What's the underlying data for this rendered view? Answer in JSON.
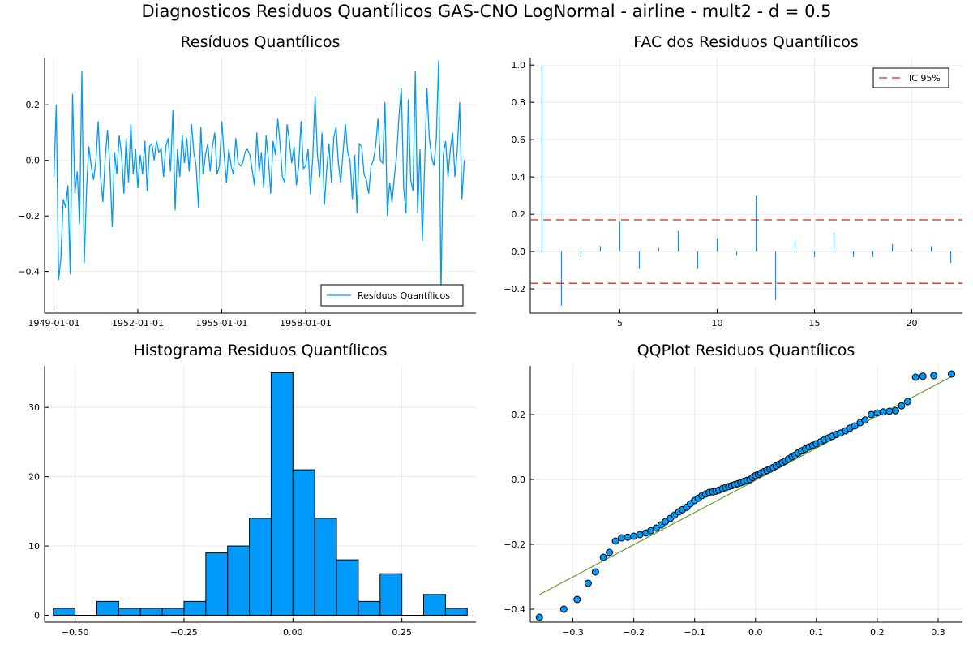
{
  "figure": {
    "suptitle": "Diagnosticos Residuos  Quantílicos GAS-CNO LogNormal - airline - mult2 - d = 0.5"
  },
  "colors": {
    "series": "#009AFA",
    "ci_line": "#E0261B",
    "qq_line": "#5F9E2A",
    "bar_edge": "#000000"
  },
  "chart_data": [
    {
      "id": "residuals",
      "type": "line",
      "title": "Resíduos  Quantílicos",
      "xlabel": "",
      "ylabel": "",
      "x_start": "1949-01-01",
      "x_step": "1 month",
      "x_ticks": [
        "1949-01-01",
        "1952-01-01",
        "1955-01-01",
        "1958-01-01"
      ],
      "x_tick_index": [
        0,
        36,
        72,
        108
      ],
      "ylim": [
        -0.55,
        0.37
      ],
      "y_ticks": [
        -0.4,
        -0.2,
        0.0,
        0.2
      ],
      "y_tick_labels": [
        "−0.4",
        "−0.2",
        "0.0",
        "0.2"
      ],
      "grid": true,
      "legend": {
        "position": "bottom-right",
        "entries": [
          "Resíduos Quantílicos"
        ]
      },
      "series": [
        {
          "name": "Resíduos Quantílicos",
          "values": [
            -0.06,
            0.2,
            -0.43,
            -0.35,
            -0.14,
            -0.17,
            -0.09,
            -0.41,
            0.24,
            -0.12,
            -0.04,
            -0.23,
            0.32,
            -0.37,
            -0.1,
            0.05,
            -0.02,
            -0.07,
            0.0,
            0.14,
            -0.06,
            -0.15,
            0.01,
            0.11,
            -0.02,
            -0.24,
            0.03,
            -0.05,
            0.09,
            0.02,
            -0.12,
            0.08,
            -0.08,
            0.13,
            -0.05,
            0.04,
            -0.1,
            0.02,
            -0.05,
            0.07,
            -0.11,
            0.05,
            0.06,
            0.0,
            0.07,
            0.03,
            0.04,
            -0.06,
            0.05,
            0.08,
            -0.04,
            0.18,
            -0.18,
            0.04,
            -0.06,
            0.09,
            -0.01,
            0.08,
            -0.04,
            0.13,
            0.03,
            -0.02,
            -0.17,
            0.12,
            -0.05,
            0.02,
            0.06,
            -0.04,
            0.05,
            0.1,
            -0.05,
            -0.02,
            0.14,
            0.02,
            -0.08,
            0.04,
            -0.02,
            -0.05,
            0.08,
            -0.01,
            -0.02,
            -0.01,
            0.03,
            0.04,
            0.02,
            -0.03,
            -0.09,
            0.1,
            -0.04,
            0.03,
            -0.1,
            0.09,
            0.0,
            -0.12,
            0.07,
            0.02,
            0.15,
            0.06,
            -0.06,
            -0.08,
            0.13,
            0.07,
            -0.01,
            0.05,
            -0.09,
            -0.02,
            0.14,
            -0.03,
            -0.02,
            0.04,
            -0.12,
            0.01,
            0.23,
            0.02,
            -0.06,
            0.1,
            -0.16,
            -0.03,
            0.06,
            -0.08,
            0.08,
            0.12,
            -0.01,
            -0.08,
            0.03,
            0.13,
            0.03,
            0.0,
            -0.14,
            0.02,
            -0.19,
            0.06,
            0.05,
            -0.05,
            -0.07,
            -0.12,
            -0.02,
            0.0,
            0.05,
            0.15,
            0.0,
            -0.01,
            0.21,
            -0.2,
            -0.08,
            -0.15,
            -0.06,
            0.02,
            0.16,
            0.26,
            -0.1,
            -0.19,
            0.22,
            -0.07,
            -0.11,
            0.32,
            -0.19,
            0.04,
            -0.29,
            -0.02,
            0.26,
            0.08,
            0.01,
            -0.02,
            0.08,
            0.36,
            -0.47,
            0.02,
            0.07,
            -0.06,
            0.04,
            0.1,
            -0.06,
            0.04,
            0.21,
            -0.14,
            0.0
          ]
        }
      ]
    },
    {
      "id": "acf",
      "type": "bar",
      "title": "FAC dos Residuos Quantílicos",
      "xlabel": "",
      "ylabel": "",
      "x": [
        1,
        2,
        3,
        4,
        5,
        6,
        7,
        8,
        9,
        10,
        11,
        12,
        13,
        14,
        15,
        16,
        17,
        18,
        19,
        20,
        21,
        22
      ],
      "values": [
        1.0,
        -0.29,
        -0.03,
        0.03,
        0.16,
        -0.09,
        0.02,
        0.11,
        -0.09,
        0.07,
        -0.02,
        0.3,
        -0.26,
        0.06,
        -0.03,
        0.1,
        -0.03,
        -0.03,
        0.04,
        0.01,
        0.03,
        -0.06
      ],
      "xlim": [
        0.4,
        22.6
      ],
      "ylim": [
        -0.33,
        1.04
      ],
      "x_ticks": [
        5,
        10,
        15,
        20
      ],
      "y_ticks": [
        -0.2,
        0.0,
        0.2,
        0.4,
        0.6,
        0.8,
        1.0
      ],
      "y_tick_labels": [
        "−0.2",
        "0.0",
        "0.2",
        "0.4",
        "0.6",
        "0.8",
        "1.0"
      ],
      "ci": [
        -0.17,
        0.17
      ],
      "grid": true,
      "legend": {
        "position": "top-right",
        "entries": [
          "IC 95%"
        ]
      }
    },
    {
      "id": "histogram",
      "type": "bar",
      "title": "Histograma Residuos Quantílicos",
      "xlabel": "",
      "ylabel": "",
      "bin_edges": [
        -0.55,
        -0.5,
        -0.45,
        -0.4,
        -0.35,
        -0.3,
        -0.25,
        -0.2,
        -0.15,
        -0.1,
        -0.05,
        0.0,
        0.05,
        0.1,
        0.15,
        0.2,
        0.25,
        0.3,
        0.35,
        0.4
      ],
      "values": [
        1,
        0,
        2,
        1,
        1,
        1,
        2,
        9,
        10,
        14,
        35,
        21,
        14,
        8,
        2,
        6,
        0,
        3,
        1
      ],
      "xlim": [
        -0.57,
        0.42
      ],
      "ylim": [
        -1,
        36
      ],
      "x_ticks": [
        -0.5,
        -0.25,
        0.0,
        0.25
      ],
      "x_tick_labels": [
        "−0.50",
        "−0.25",
        "0.00",
        "0.25"
      ],
      "y_ticks": [
        0,
        10,
        20,
        30
      ],
      "grid": true
    },
    {
      "id": "qqplot",
      "type": "scatter",
      "title": "QQPlot Residuos Quantílicos",
      "xlabel": "",
      "ylabel": "",
      "xlim": [
        -0.37,
        0.34
      ],
      "ylim": [
        -0.44,
        0.35
      ],
      "x_ticks": [
        -0.3,
        -0.2,
        -0.1,
        0.0,
        0.1,
        0.2,
        0.3
      ],
      "x_tick_labels": [
        "−0.3",
        "−0.2",
        "−0.1",
        "0.0",
        "0.1",
        "0.2",
        "0.3"
      ],
      "y_ticks": [
        -0.4,
        -0.2,
        0.0,
        0.2
      ],
      "y_tick_labels": [
        "−0.4",
        "−0.2",
        "0.0",
        "0.2"
      ],
      "grid": true,
      "reference_line": {
        "x": [
          -0.355,
          0.325
        ],
        "y": [
          -0.355,
          0.32
        ]
      },
      "points": {
        "x": [
          -0.355,
          -0.315,
          -0.293,
          -0.275,
          -0.263,
          -0.25,
          -0.24,
          -0.23,
          -0.22,
          -0.21,
          -0.2,
          -0.19,
          -0.18,
          -0.172,
          -0.163,
          -0.155,
          -0.148,
          -0.14,
          -0.133,
          -0.126,
          -0.12,
          -0.113,
          -0.107,
          -0.1,
          -0.094,
          -0.088,
          -0.082,
          -0.076,
          -0.07,
          -0.065,
          -0.06,
          -0.054,
          -0.049,
          -0.044,
          -0.039,
          -0.034,
          -0.029,
          -0.024,
          -0.019,
          -0.014,
          -0.009,
          -0.005,
          0.0,
          0.005,
          0.009,
          0.014,
          0.019,
          0.024,
          0.029,
          0.034,
          0.039,
          0.044,
          0.049,
          0.054,
          0.06,
          0.065,
          0.07,
          0.076,
          0.082,
          0.088,
          0.094,
          0.1,
          0.107,
          0.113,
          0.12,
          0.126,
          0.133,
          0.14,
          0.148,
          0.155,
          0.163,
          0.172,
          0.18,
          0.19,
          0.2,
          0.21,
          0.22,
          0.23,
          0.24,
          0.25,
          0.263,
          0.275,
          0.293,
          0.322
        ],
        "y": [
          -0.425,
          -0.4,
          -0.37,
          -0.32,
          -0.285,
          -0.24,
          -0.225,
          -0.19,
          -0.18,
          -0.178,
          -0.175,
          -0.17,
          -0.165,
          -0.158,
          -0.15,
          -0.14,
          -0.13,
          -0.12,
          -0.11,
          -0.1,
          -0.093,
          -0.086,
          -0.075,
          -0.065,
          -0.058,
          -0.05,
          -0.045,
          -0.04,
          -0.038,
          -0.036,
          -0.033,
          -0.028,
          -0.025,
          -0.022,
          -0.019,
          -0.016,
          -0.013,
          -0.01,
          -0.006,
          -0.003,
          0.0,
          0.006,
          0.012,
          0.016,
          0.02,
          0.024,
          0.028,
          0.032,
          0.037,
          0.042,
          0.047,
          0.052,
          0.057,
          0.063,
          0.07,
          0.075,
          0.082,
          0.088,
          0.094,
          0.1,
          0.105,
          0.11,
          0.116,
          0.122,
          0.128,
          0.133,
          0.139,
          0.143,
          0.15,
          0.158,
          0.165,
          0.175,
          0.183,
          0.2,
          0.205,
          0.208,
          0.21,
          0.212,
          0.227,
          0.24,
          0.315,
          0.318,
          0.32,
          0.325
        ]
      }
    }
  ]
}
